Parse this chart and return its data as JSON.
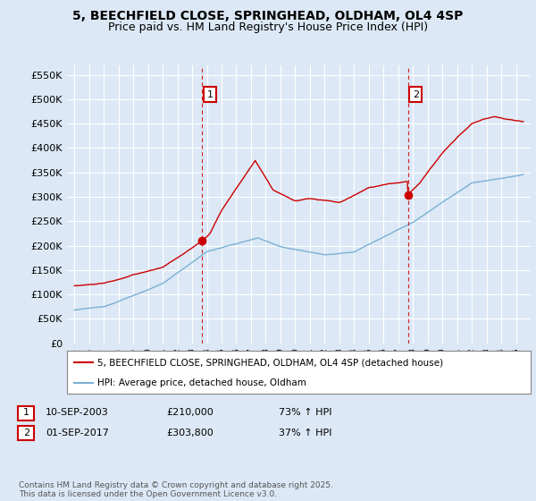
{
  "title": "5, BEECHFIELD CLOSE, SPRINGHEAD, OLDHAM, OL4 4SP",
  "subtitle": "Price paid vs. HM Land Registry's House Price Index (HPI)",
  "ylim": [
    0,
    570000
  ],
  "yticks": [
    0,
    50000,
    100000,
    150000,
    200000,
    250000,
    300000,
    350000,
    400000,
    450000,
    500000,
    550000
  ],
  "ytick_labels": [
    "£0",
    "£50K",
    "£100K",
    "£150K",
    "£200K",
    "£250K",
    "£300K",
    "£350K",
    "£400K",
    "£450K",
    "£500K",
    "£550K"
  ],
  "background_color": "#dce8f5",
  "plot_bg_color": "#dce8f5",
  "grid_color": "#ffffff",
  "red_line_color": "#cc0000",
  "blue_line_color": "#7ab0d4",
  "marker1_date": 2003.69,
  "marker1_value": 210000,
  "marker2_date": 2017.67,
  "marker2_value": 303800,
  "vline_color": "#cc0000",
  "legend_label_red": "5, BEECHFIELD CLOSE, SPRINGHEAD, OLDHAM, OL4 4SP (detached house)",
  "legend_label_blue": "HPI: Average price, detached house, Oldham",
  "table_row1": [
    "1",
    "10-SEP-2003",
    "£210,000",
    "73% ↑ HPI"
  ],
  "table_row2": [
    "2",
    "01-SEP-2017",
    "£303,800",
    "37% ↑ HPI"
  ],
  "footer": "Contains HM Land Registry data © Crown copyright and database right 2025.\nThis data is licensed under the Open Government Licence v3.0.",
  "title_fontsize": 10,
  "subtitle_fontsize": 9,
  "tick_fontsize": 8,
  "legend_fontsize": 8
}
